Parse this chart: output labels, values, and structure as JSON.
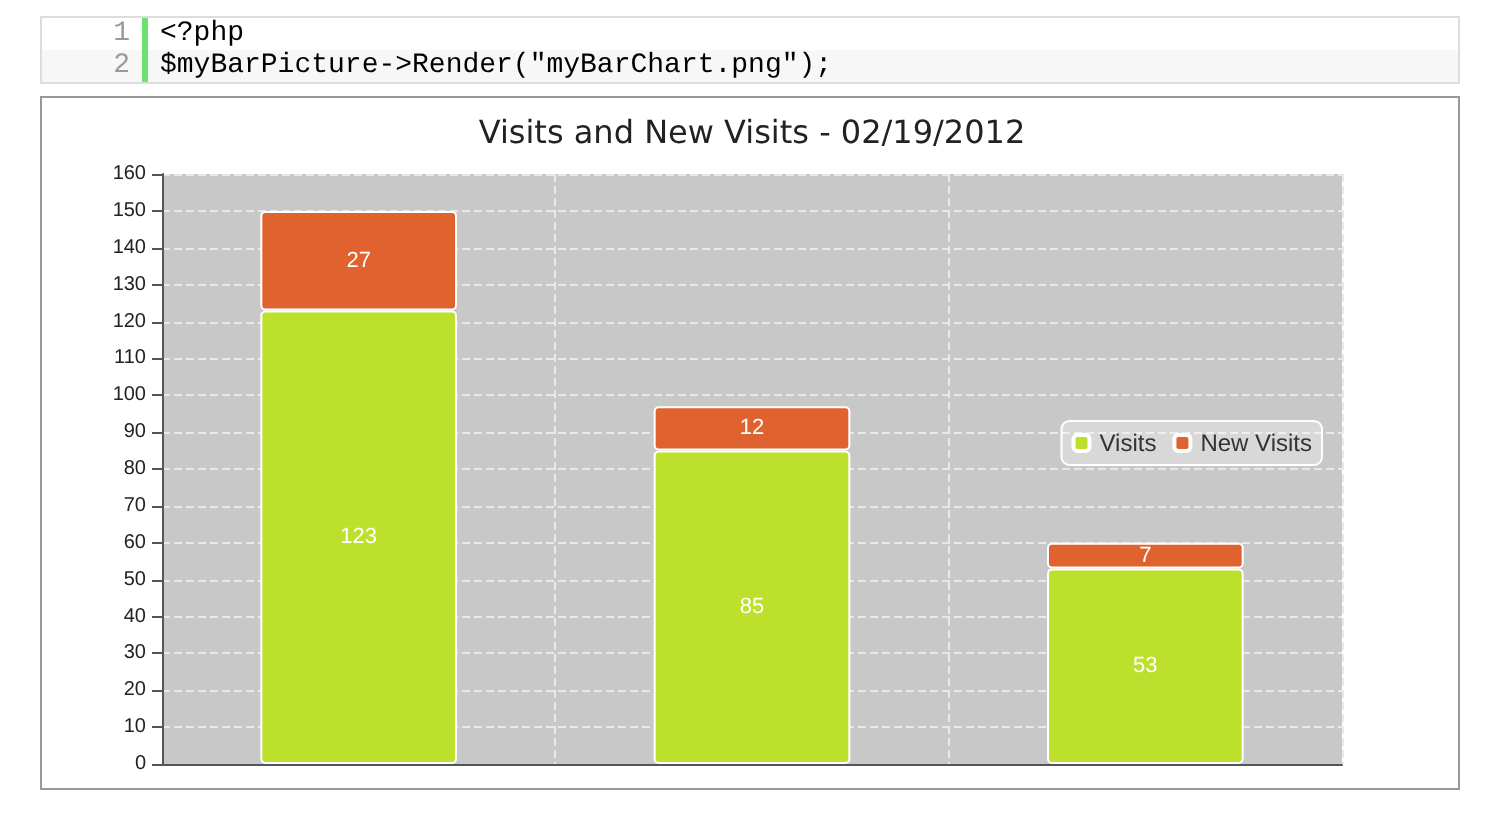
{
  "chart_data": {
    "type": "bar",
    "title": "Visits and New Visits - 02/19/2012",
    "annotations": [
      "1",
      "<?php",
      "2",
      "$myBarPicture->Render(\"myBarChart.png\");"
    ],
    "categories": [
      null,
      null,
      null
    ],
    "stacked": true,
    "series": [
      {
        "name": "Visits",
        "color": "#bde02d",
        "values": [
          123,
          85,
          53
        ]
      },
      {
        "name": "New Visits",
        "color": "#e0622e",
        "values": [
          27,
          12,
          7
        ]
      }
    ],
    "ylim": [
      0,
      160
    ],
    "yticks": [
      0,
      10,
      20,
      30,
      40,
      50,
      60,
      70,
      80,
      90,
      100,
      110,
      120,
      130,
      140,
      150,
      160
    ],
    "grid": true,
    "legend": "right",
    "data_labels": true
  }
}
